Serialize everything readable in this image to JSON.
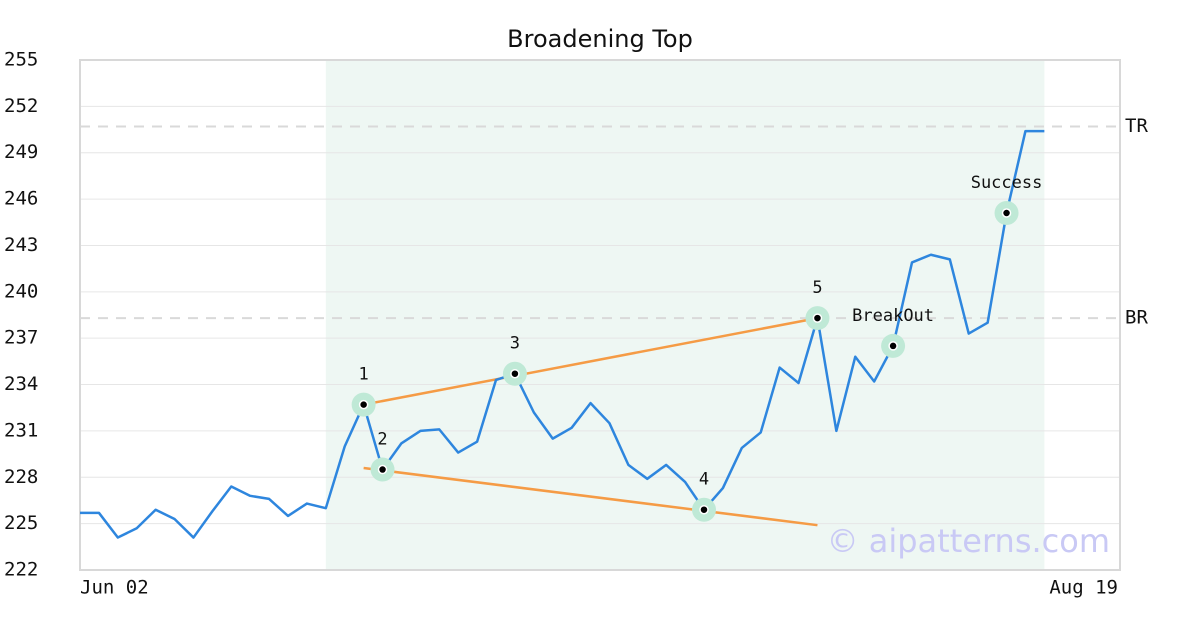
{
  "chart_data": {
    "type": "line",
    "title": "Broadening Top",
    "categories": [
      "Jun 02",
      null,
      null,
      null,
      null,
      null,
      null,
      null,
      null,
      null,
      null,
      null,
      null,
      null,
      null,
      null,
      null,
      null,
      null,
      null,
      null,
      null,
      null,
      null,
      null,
      null,
      null,
      null,
      null,
      null,
      null,
      null,
      null,
      null,
      null,
      null,
      null,
      null,
      null,
      null,
      null,
      null,
      null,
      null,
      null,
      null,
      null,
      null,
      null,
      null,
      null,
      null,
      null,
      null,
      null,
      "Aug 19"
    ],
    "series": [
      {
        "color": "#2e86de",
        "values": [
          225.7,
          225.7,
          224.1,
          224.7,
          225.9,
          225.3,
          224.1,
          225.8,
          227.4,
          226.8,
          226.6,
          225.5,
          226.3,
          226.0,
          230.0,
          232.7,
          228.5,
          230.2,
          231.0,
          231.1,
          229.6,
          230.3,
          234.3,
          234.7,
          232.2,
          230.5,
          231.2,
          232.8,
          231.5,
          228.8,
          227.9,
          228.8,
          227.7,
          225.9,
          227.3,
          229.9,
          230.9,
          235.1,
          234.1,
          238.3,
          231.0,
          235.8,
          234.2,
          236.5,
          241.9,
          242.4,
          242.1,
          237.3,
          238.0,
          245.1,
          250.4,
          250.4,
          null,
          null,
          null,
          null
        ]
      }
    ],
    "ylim": [
      222,
      255
    ],
    "yticks": [
      222,
      225,
      228,
      231,
      234,
      237,
      240,
      243,
      246,
      249,
      252,
      255
    ],
    "grid": true,
    "highlight": {
      "start": 13,
      "end": 51,
      "color": "#eef7f3"
    },
    "levels": [
      {
        "label": "TR",
        "value": 250.7
      },
      {
        "label": "BR",
        "value": 238.3
      }
    ],
    "trendlines": [
      {
        "color": "#f59b45",
        "x": [
          15,
          39
        ],
        "values": [
          232.7,
          238.3
        ]
      },
      {
        "color": "#f59b45",
        "x": [
          15,
          39
        ],
        "values": [
          228.6,
          224.9
        ]
      }
    ],
    "markers": [
      {
        "index": 15,
        "label": "1"
      },
      {
        "index": 16,
        "label": "2"
      },
      {
        "index": 23,
        "label": "3"
      },
      {
        "index": 33,
        "label": "4"
      },
      {
        "index": 39,
        "label": "5"
      },
      {
        "index": 43,
        "label": "BreakOut"
      },
      {
        "index": 49,
        "label": "Success"
      }
    ],
    "watermark": "© aipatterns.com"
  }
}
